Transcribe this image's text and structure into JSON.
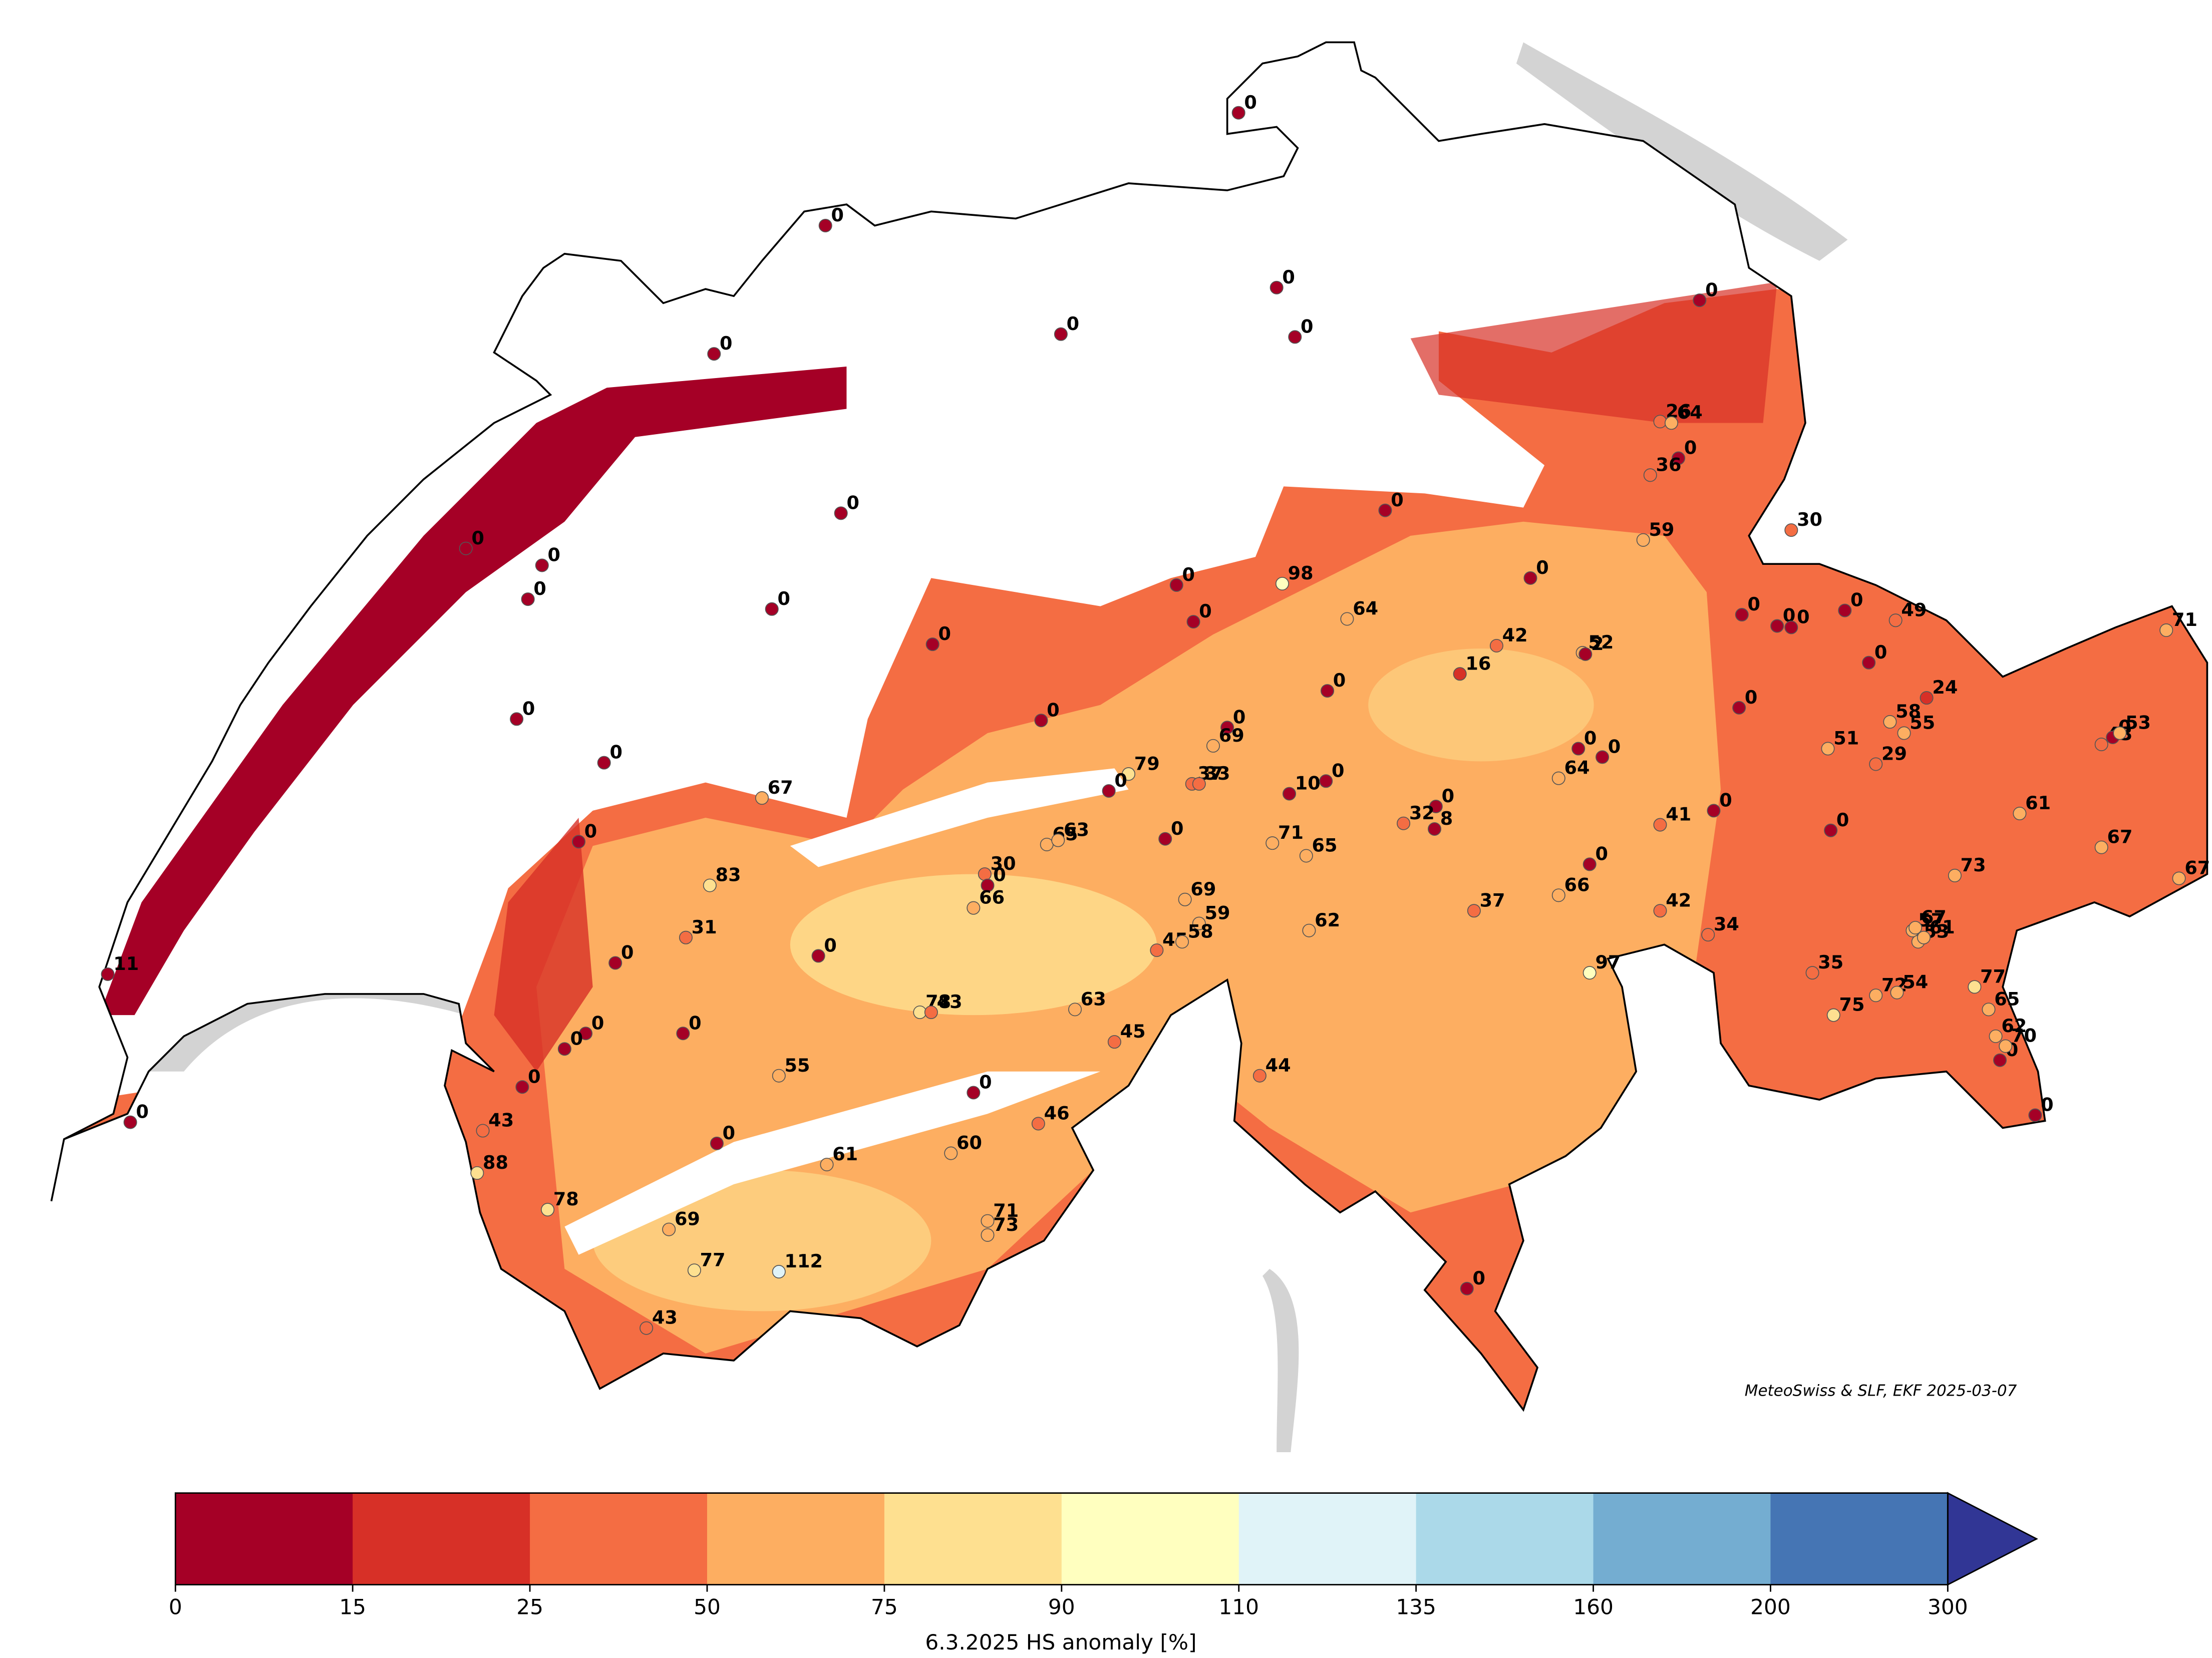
{
  "map": {
    "stations": [
      0,
      0,
      0,
      0,
      0,
      0,
      0,
      26,
      64,
      0,
      36,
      0,
      0,
      0,
      0,
      0,
      59,
      30,
      0,
      0,
      98,
      0,
      64,
      42,
      52,
      2,
      0,
      16,
      0,
      0,
      0,
      0,
      49,
      71,
      0,
      24,
      0,
      0,
      0,
      58,
      55,
      51,
      29,
      43,
      0,
      53,
      0,
      0,
      0,
      69,
      0,
      0,
      64,
      0,
      79,
      37,
      33,
      0,
      10,
      0,
      67,
      0,
      32,
      8,
      41,
      0,
      0,
      61,
      67,
      67,
      0,
      0,
      65,
      63,
      71,
      65,
      30,
      0,
      66,
      83,
      0,
      66,
      73,
      37,
      69,
      59,
      45,
      58,
      42,
      34,
      62,
      57,
      67,
      53,
      61,
      31,
      0,
      97,
      35,
      72,
      54,
      75,
      77,
      65,
      0,
      11,
      78,
      43,
      63,
      0,
      0,
      0,
      45,
      44,
      62,
      70,
      0,
      0,
      0,
      55,
      0,
      0,
      43,
      88,
      46,
      0,
      61,
      60,
      78,
      71,
      73,
      69,
      77,
      112,
      43,
      0
    ],
    "credit": "MeteoSwiss & SLF, EKF 2025-03-07",
    "colorbar": {
      "boundaries": [
        0,
        15,
        25,
        50,
        75,
        90,
        110,
        135,
        160,
        200,
        300
      ],
      "colors": [
        "#a50026",
        "#d73027",
        "#f46d43",
        "#fdae61",
        "#fee090",
        "#ffffbf",
        "#e0f3f8",
        "#abd9e9",
        "#74add1",
        "#4575b4"
      ],
      "extend_color": "#313695",
      "label": "6.3.2025   HS anomaly [%]"
    }
  }
}
